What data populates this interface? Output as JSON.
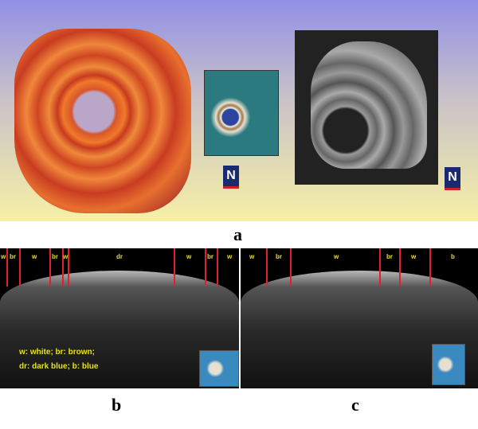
{
  "panel_labels": {
    "a": "a",
    "b": "b",
    "c": "c"
  },
  "compass_glyph": "N",
  "panel_b": {
    "markers": [
      "w",
      "br",
      "w",
      "br",
      "w",
      "dr",
      "w",
      "br",
      "w"
    ],
    "legend_line1": "w: white; br: brown;",
    "legend_line2": "dr: dark blue; b: blue"
  },
  "panel_c": {
    "markers": [
      "w",
      "br",
      "w",
      "br",
      "w",
      "b"
    ]
  },
  "colors": {
    "marker_line": "#e0202a",
    "marker_text": "#e6e020"
  }
}
